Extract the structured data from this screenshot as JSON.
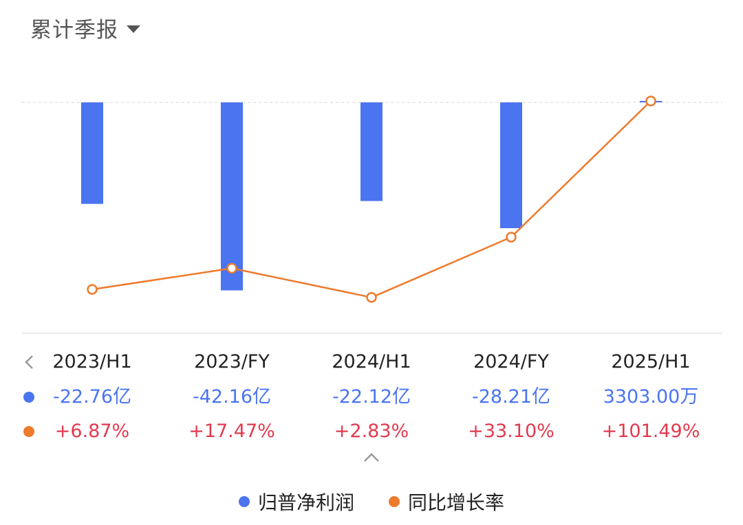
{
  "header": {
    "title": "累计季报"
  },
  "colors": {
    "profit_bar": "#4a74f0",
    "growth_line": "#ee7a2c",
    "value_text": "#4a74f0",
    "growth_text": "#e23a4f"
  },
  "chart_data": {
    "type": "bar",
    "categories": [
      "2023/H1",
      "2023/FY",
      "2024/H1",
      "2024/FY",
      "2025/H1"
    ],
    "series": [
      {
        "name": "归普净利润",
        "type": "bar",
        "values": [
          -22.76,
          -42.16,
          -22.12,
          -28.21,
          0.3303
        ]
      },
      {
        "name": "同比增长率",
        "type": "line",
        "values": [
          6.87,
          17.47,
          2.83,
          33.1,
          101.49
        ]
      }
    ],
    "value_labels": [
      "-22.76亿",
      "-42.16亿",
      "-22.12亿",
      "-28.21亿",
      "3303.00万"
    ],
    "growth_labels": [
      "+6.87%",
      "+17.47%",
      "+2.83%",
      "+33.10%",
      "+101.49%"
    ],
    "bar_ylim": [
      -45,
      0
    ],
    "line_ylim": [
      0,
      101.49
    ],
    "legend_position": "bottom-center"
  },
  "legend": [
    {
      "label": "归普净利润",
      "color": "#4a74f0"
    },
    {
      "label": "同比增长率",
      "color": "#ee7a2c"
    }
  ]
}
